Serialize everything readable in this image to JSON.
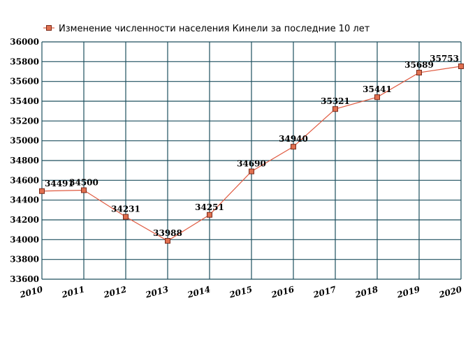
{
  "chart_data": {
    "type": "line",
    "title": "",
    "xlabel": "",
    "ylabel": "",
    "legend": {
      "position": "top-left",
      "entries": [
        "Изменение численности населения Кинели за последние 10 лет"
      ]
    },
    "series": [
      {
        "name": "Изменение численности населения Кинели за последние 10 лет",
        "color": "#e05a40",
        "marker_fill": "#e07050",
        "x": [
          2010,
          2011,
          2012,
          2013,
          2014,
          2015,
          2016,
          2017,
          2018,
          2019,
          2020
        ],
        "values": [
          34491,
          34500,
          34231,
          33988,
          34251,
          34690,
          34940,
          35321,
          35441,
          35689,
          35753
        ]
      }
    ],
    "x_ticks": [
      "2010",
      "2011",
      "2012",
      "2013",
      "2014",
      "2015",
      "2016",
      "2017",
      "2018",
      "2019",
      "2020"
    ],
    "y_ticks": [
      "33600",
      "33800",
      "34000",
      "34200",
      "34400",
      "34600",
      "34800",
      "35000",
      "35200",
      "35400",
      "35600",
      "35800",
      "36000"
    ],
    "xlim": [
      2010,
      2020
    ],
    "ylim": [
      33600,
      36000
    ],
    "grid": true,
    "grid_color": "#1d4f5e"
  }
}
